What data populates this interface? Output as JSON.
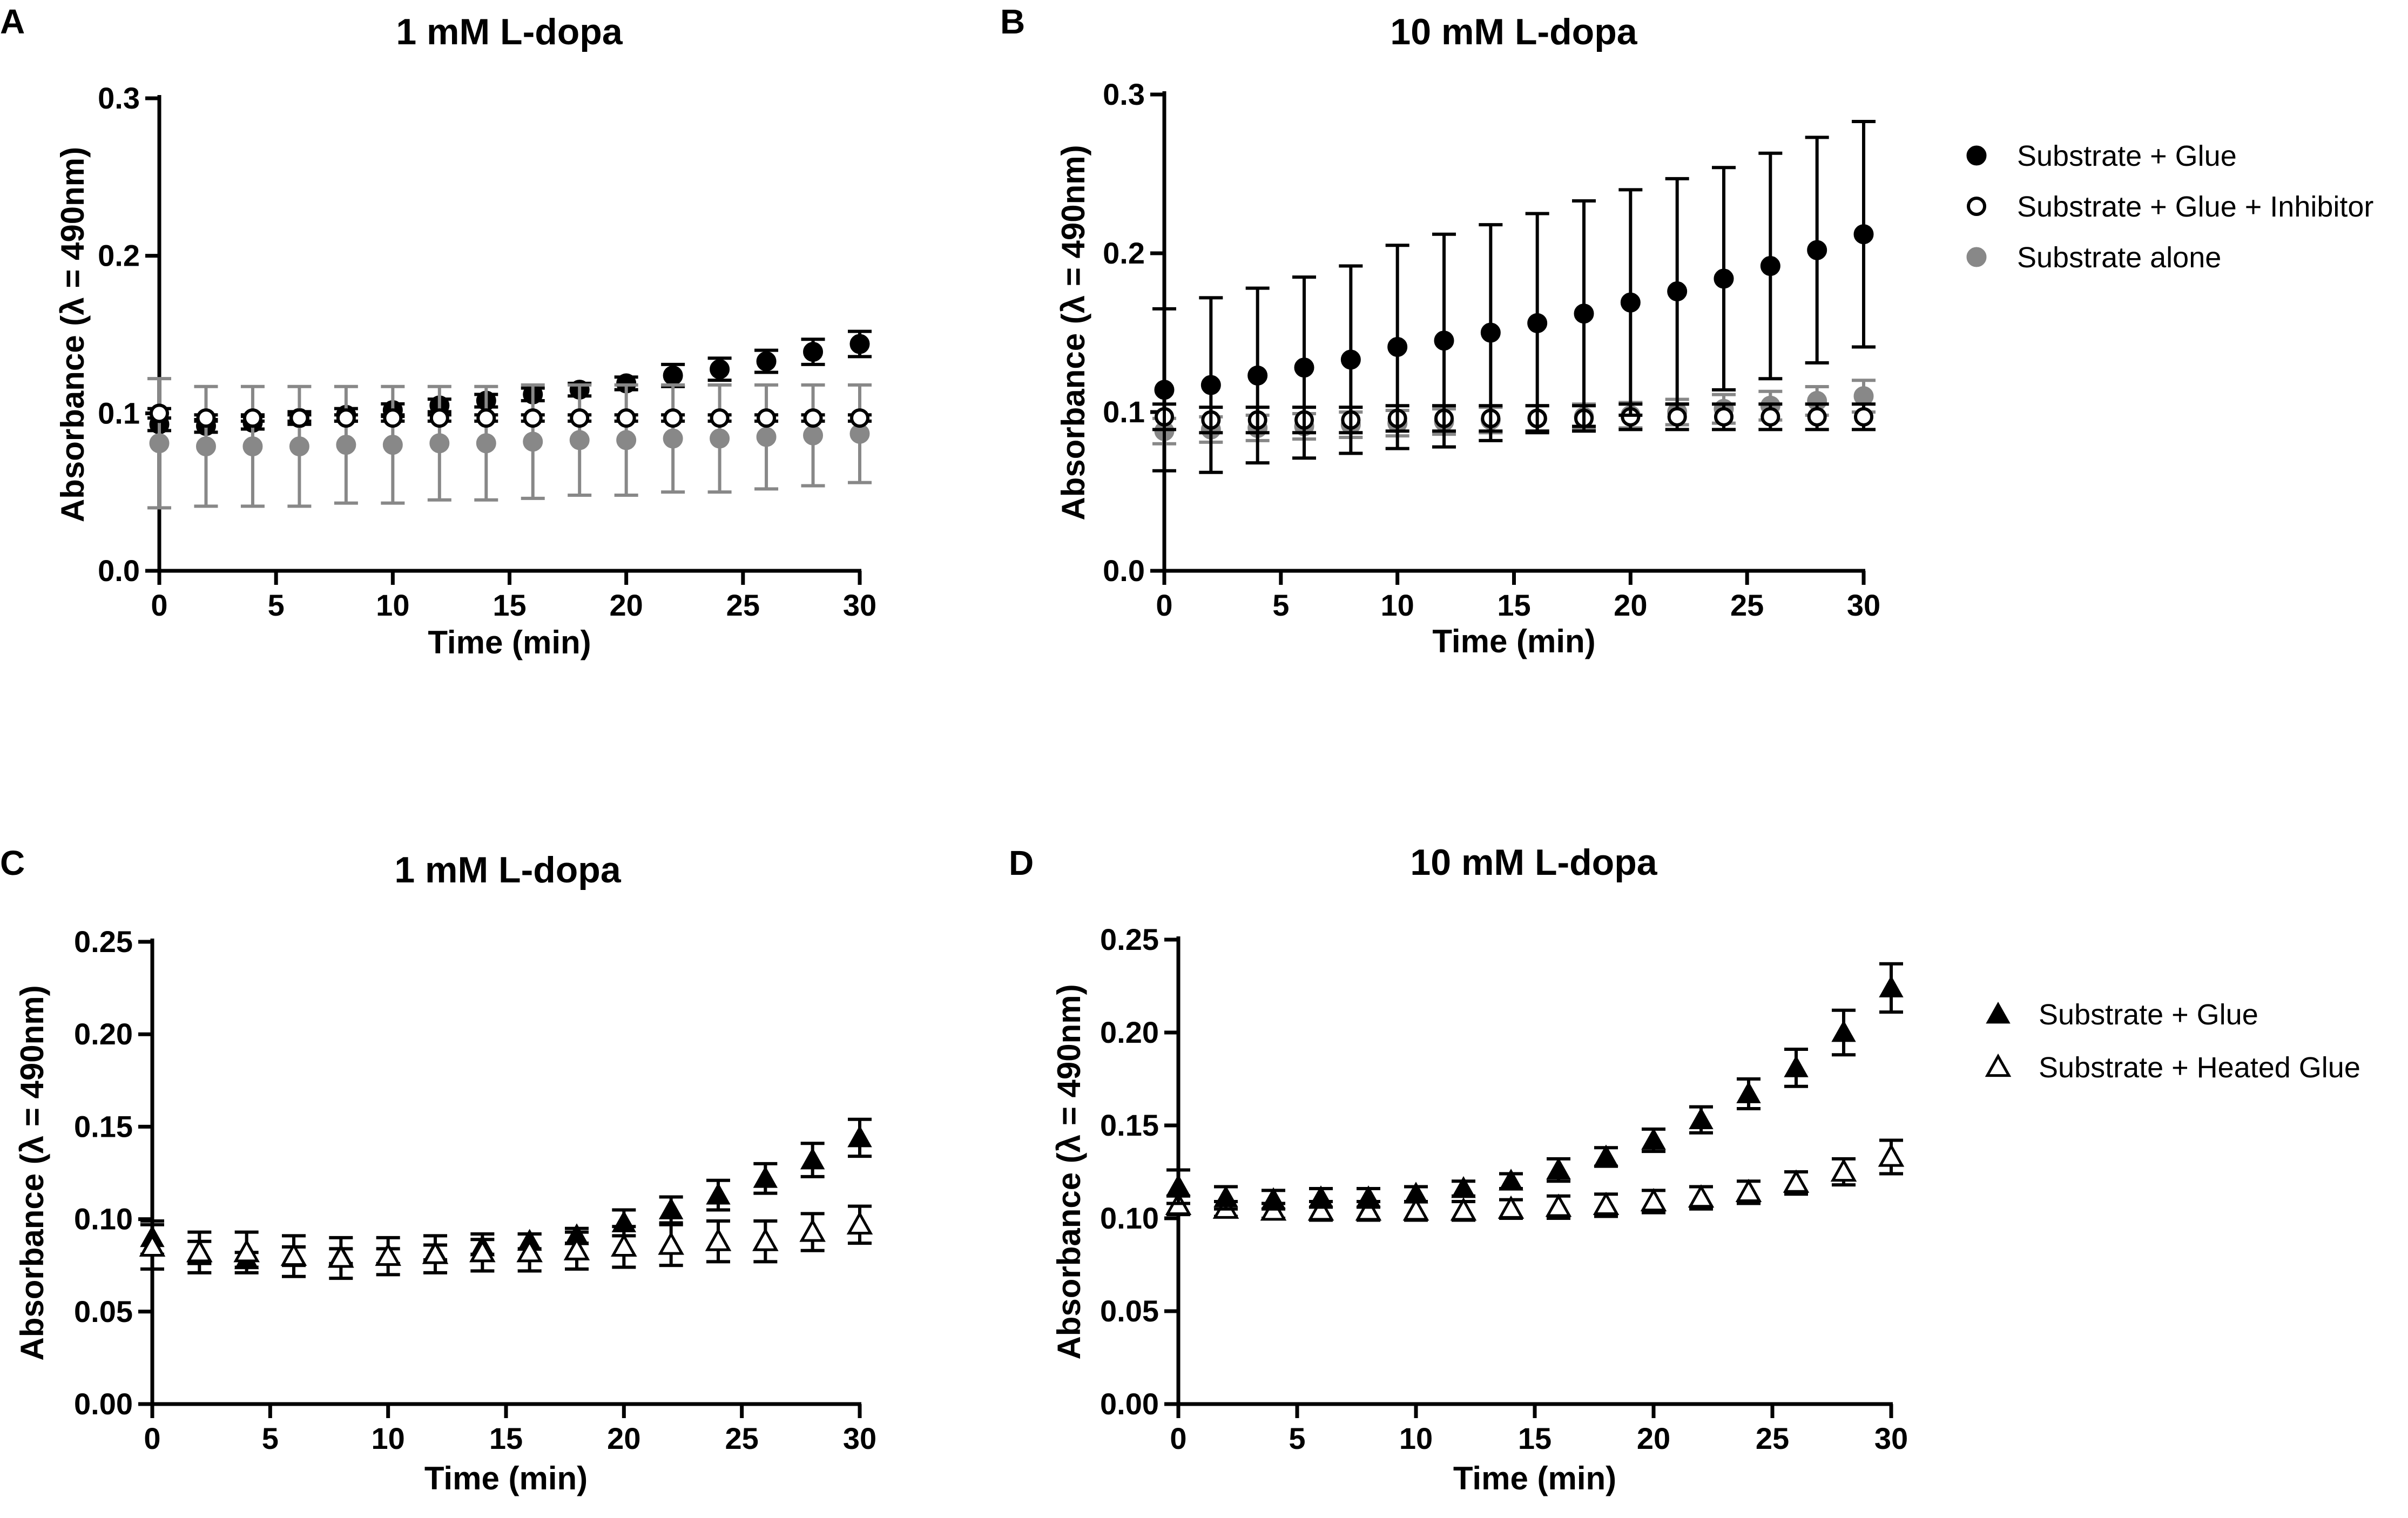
{
  "chart_data": [
    {
      "panel": "A",
      "type": "scatter",
      "title": "1 mM L-dopa",
      "xlabel": "Time (min)",
      "ylabel": "Absorbance (λ = 490nm)",
      "xlim": [
        0,
        30
      ],
      "ylim": [
        0,
        0.3
      ],
      "xticks": [
        0,
        5,
        10,
        15,
        20,
        25,
        30
      ],
      "yticks": [
        0.0,
        0.1,
        0.2,
        0.3
      ],
      "ytick_labels": [
        "0.0",
        "0.1",
        "0.2",
        "0.3"
      ],
      "x": [
        0,
        2,
        4,
        6,
        8,
        10,
        12,
        14,
        16,
        18,
        20,
        22,
        24,
        26,
        28,
        30
      ],
      "series": [
        {
          "name": "Substrate + Glue",
          "marker": "circle-filled",
          "color": "#000000",
          "values": [
            0.093,
            0.092,
            0.094,
            0.097,
            0.099,
            0.102,
            0.105,
            0.108,
            0.112,
            0.115,
            0.119,
            0.124,
            0.128,
            0.133,
            0.139,
            0.144
          ],
          "errors": [
            0.004,
            0.004,
            0.004,
            0.004,
            0.004,
            0.004,
            0.004,
            0.004,
            0.004,
            0.004,
            0.004,
            0.007,
            0.007,
            0.007,
            0.008,
            0.008
          ]
        },
        {
          "name": "Substrate alone",
          "marker": "circle-filled",
          "color": "#888888",
          "values": [
            0.081,
            0.079,
            0.079,
            0.079,
            0.08,
            0.08,
            0.081,
            0.081,
            0.082,
            0.083,
            0.083,
            0.084,
            0.084,
            0.085,
            0.086,
            0.087
          ],
          "errors": [
            0.041,
            0.038,
            0.038,
            0.038,
            0.037,
            0.037,
            0.036,
            0.036,
            0.036,
            0.035,
            0.035,
            0.034,
            0.034,
            0.033,
            0.032,
            0.031
          ]
        },
        {
          "name": "Substrate + Glue + Inhibitor",
          "marker": "circle-open",
          "color": "#000000",
          "values": [
            0.1,
            0.097,
            0.097,
            0.097,
            0.097,
            0.097,
            0.097,
            0.097,
            0.097,
            0.097,
            0.097,
            0.097,
            0.097,
            0.097,
            0.097,
            0.097
          ],
          "errors": [
            0.003,
            0.002,
            0.002,
            0.002,
            0.002,
            0.002,
            0.002,
            0.002,
            0.002,
            0.002,
            0.002,
            0.002,
            0.002,
            0.002,
            0.002,
            0.002
          ]
        }
      ]
    },
    {
      "panel": "B",
      "type": "scatter",
      "title": "10 mM L-dopa",
      "xlabel": "Time (min)",
      "ylabel": "Absorbance (λ = 490nm)",
      "xlim": [
        0,
        30
      ],
      "ylim": [
        0,
        0.3
      ],
      "xticks": [
        0,
        5,
        10,
        15,
        20,
        25,
        30
      ],
      "yticks": [
        0.0,
        0.1,
        0.2,
        0.3
      ],
      "ytick_labels": [
        "0.0",
        "0.1",
        "0.2",
        "0.3"
      ],
      "x": [
        0,
        2,
        4,
        6,
        8,
        10,
        12,
        14,
        16,
        18,
        20,
        22,
        24,
        26,
        28,
        30
      ],
      "series": [
        {
          "name": "Substrate alone",
          "marker": "circle-filled",
          "color": "#888888",
          "values": [
            0.088,
            0.089,
            0.09,
            0.091,
            0.092,
            0.093,
            0.094,
            0.095,
            0.096,
            0.097,
            0.098,
            0.1,
            0.102,
            0.104,
            0.107,
            0.11
          ],
          "errors": [
            0.008,
            0.008,
            0.008,
            0.008,
            0.008,
            0.008,
            0.008,
            0.008,
            0.008,
            0.008,
            0.008,
            0.008,
            0.009,
            0.009,
            0.009,
            0.01
          ]
        },
        {
          "name": "Substrate + Glue + Inhibitor",
          "marker": "circle-open",
          "color": "#000000",
          "values": [
            0.097,
            0.095,
            0.095,
            0.095,
            0.095,
            0.096,
            0.096,
            0.096,
            0.096,
            0.096,
            0.097,
            0.097,
            0.097,
            0.097,
            0.097,
            0.097
          ],
          "errors": [
            0.008,
            0.008,
            0.008,
            0.008,
            0.008,
            0.008,
            0.008,
            0.008,
            0.008,
            0.008,
            0.008,
            0.008,
            0.008,
            0.008,
            0.008,
            0.008
          ]
        },
        {
          "name": "Substrate + Glue",
          "marker": "circle-filled",
          "color": "#000000",
          "values": [
            0.114,
            0.117,
            0.123,
            0.128,
            0.133,
            0.141,
            0.145,
            0.15,
            0.156,
            0.162,
            0.169,
            0.176,
            0.184,
            0.192,
            0.202,
            0.212
          ],
          "errors": [
            0.051,
            0.055,
            0.055,
            0.057,
            0.059,
            0.064,
            0.067,
            0.068,
            0.069,
            0.071,
            0.071,
            0.071,
            0.07,
            0.071,
            0.071,
            0.071
          ]
        }
      ]
    },
    {
      "panel": "C",
      "type": "scatter",
      "title": "1 mM L-dopa",
      "xlabel": "Time (min)",
      "ylabel": "Absorbance (λ = 490nm)",
      "xlim": [
        0,
        30
      ],
      "ylim": [
        0,
        0.25
      ],
      "xticks": [
        0,
        5,
        10,
        15,
        20,
        25,
        30
      ],
      "yticks": [
        0.0,
        0.05,
        0.1,
        0.15,
        0.2,
        0.25
      ],
      "ytick_labels": [
        "0.00",
        "0.05",
        "0.10",
        "0.15",
        "0.20",
        "0.25"
      ],
      "x": [
        0,
        2,
        4,
        6,
        8,
        10,
        12,
        14,
        16,
        18,
        20,
        22,
        24,
        26,
        28,
        30
      ],
      "series": [
        {
          "name": "Substrate + Glue",
          "marker": "triangle-filled",
          "color": "#000000",
          "values": [
            0.09,
            0.082,
            0.078,
            0.08,
            0.08,
            0.08,
            0.082,
            0.085,
            0.088,
            0.091,
            0.098,
            0.105,
            0.113,
            0.122,
            0.132,
            0.144
          ],
          "errors": [
            0.009,
            0.006,
            0.004,
            0.005,
            0.004,
            0.004,
            0.004,
            0.004,
            0.004,
            0.004,
            0.007,
            0.007,
            0.008,
            0.008,
            0.009,
            0.01
          ]
        },
        {
          "name": "Substrate + Heated Glue",
          "marker": "triangle-open",
          "color": "#000000",
          "values": [
            0.085,
            0.082,
            0.082,
            0.08,
            0.079,
            0.08,
            0.081,
            0.082,
            0.082,
            0.083,
            0.085,
            0.086,
            0.088,
            0.088,
            0.093,
            0.097
          ],
          "errors": [
            0.012,
            0.011,
            0.011,
            0.011,
            0.011,
            0.01,
            0.01,
            0.01,
            0.01,
            0.01,
            0.011,
            0.011,
            0.011,
            0.011,
            0.01,
            0.01
          ]
        }
      ]
    },
    {
      "panel": "D",
      "type": "scatter",
      "title": "10 mM L-dopa",
      "xlabel": "Time (min)",
      "ylabel": "Absorbance (λ = 490nm)",
      "xlim": [
        0,
        30
      ],
      "ylim": [
        0,
        0.25
      ],
      "xticks": [
        0,
        5,
        10,
        15,
        20,
        25,
        30
      ],
      "yticks": [
        0.0,
        0.05,
        0.1,
        0.15,
        0.2,
        0.25
      ],
      "ytick_labels": [
        "0.00",
        "0.05",
        "0.10",
        "0.15",
        "0.20",
        "0.25"
      ],
      "x": [
        0,
        2,
        4,
        6,
        8,
        10,
        12,
        14,
        16,
        18,
        20,
        22,
        24,
        26,
        28,
        30
      ],
      "series": [
        {
          "name": "Substrate + Heated Glue",
          "marker": "triangle-open",
          "color": "#000000",
          "values": [
            0.107,
            0.105,
            0.104,
            0.104,
            0.104,
            0.104,
            0.104,
            0.105,
            0.106,
            0.107,
            0.109,
            0.111,
            0.114,
            0.119,
            0.125,
            0.133
          ],
          "errors": [
            0.005,
            0.004,
            0.004,
            0.005,
            0.005,
            0.005,
            0.005,
            0.005,
            0.006,
            0.006,
            0.006,
            0.006,
            0.006,
            0.006,
            0.007,
            0.009
          ]
        },
        {
          "name": "Substrate + Glue",
          "marker": "triangle-filled",
          "color": "#000000",
          "values": [
            0.117,
            0.111,
            0.11,
            0.111,
            0.111,
            0.113,
            0.116,
            0.12,
            0.126,
            0.133,
            0.142,
            0.153,
            0.167,
            0.181,
            0.2,
            0.224
          ],
          "errors": [
            0.009,
            0.006,
            0.005,
            0.005,
            0.005,
            0.004,
            0.004,
            0.004,
            0.006,
            0.005,
            0.006,
            0.007,
            0.008,
            0.01,
            0.012,
            0.013
          ]
        }
      ]
    }
  ],
  "panel_labels": [
    "A",
    "B",
    "C",
    "D"
  ],
  "legends": [
    {
      "entries": [
        {
          "label": "Substrate + Glue",
          "marker": "circle-filled",
          "color": "#000000"
        },
        {
          "label": "Substrate + Glue + Inhibitor",
          "marker": "circle-open",
          "color": "#000000"
        },
        {
          "label": "Substrate alone",
          "marker": "circle-filled",
          "color": "#888888"
        }
      ]
    },
    {
      "entries": [
        {
          "label": "Substrate + Glue",
          "marker": "triangle-filled",
          "color": "#000000"
        },
        {
          "label": "Substrate + Heated Glue",
          "marker": "triangle-open",
          "color": "#000000"
        }
      ]
    }
  ]
}
